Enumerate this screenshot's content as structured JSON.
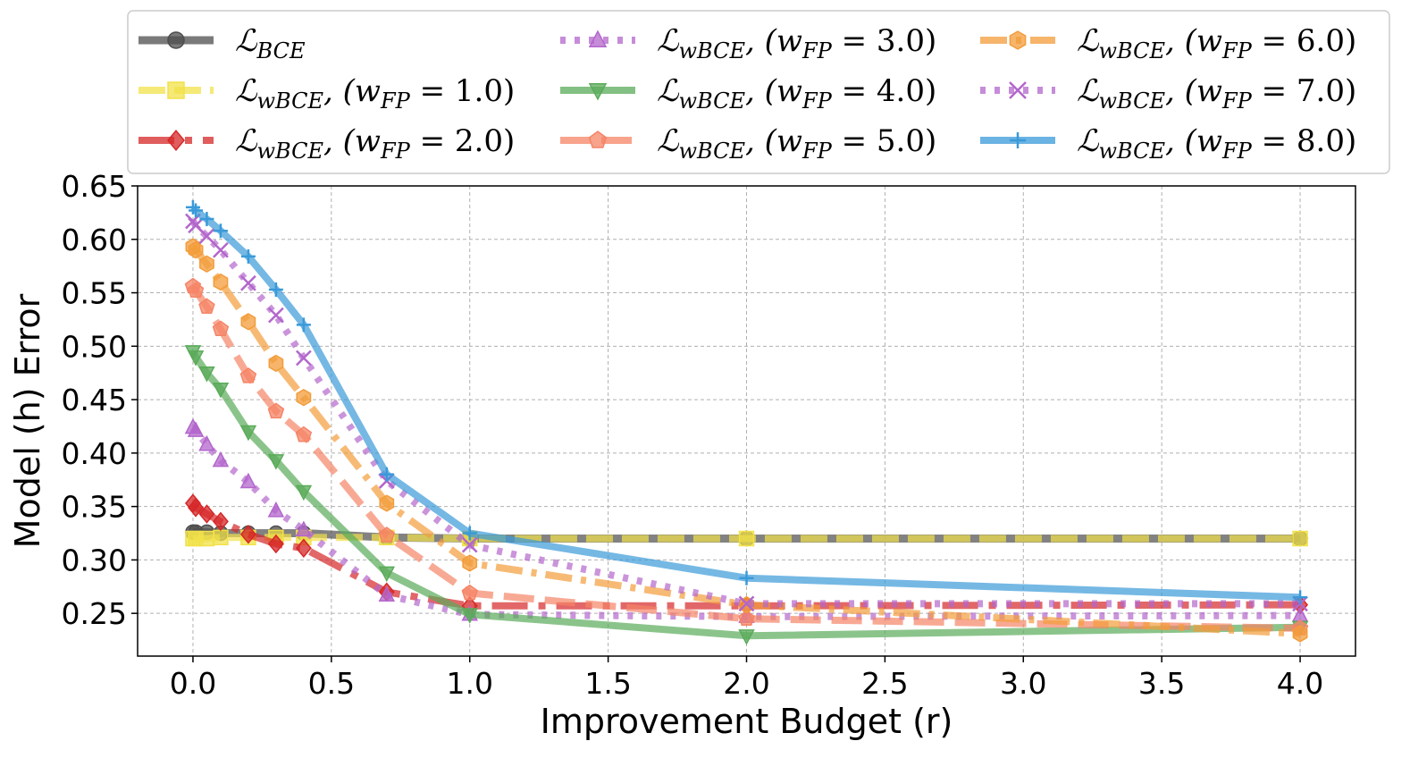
{
  "chart_data": {
    "type": "line",
    "title": "",
    "xlabel": "Improvement Budget (r)",
    "ylabel": "Model (h) Error",
    "xlim": [
      -0.2,
      4.2
    ],
    "ylim": [
      0.21,
      0.65
    ],
    "xticks": [
      0.0,
      0.5,
      1.0,
      1.5,
      2.0,
      2.5,
      3.0,
      3.5,
      4.0
    ],
    "xtick_labels": [
      "0.0",
      "0.5",
      "1.0",
      "1.5",
      "2.0",
      "2.5",
      "3.0",
      "3.5",
      "4.0"
    ],
    "yticks": [
      0.25,
      0.3,
      0.35,
      0.4,
      0.45,
      0.5,
      0.55,
      0.6,
      0.65
    ],
    "ytick_labels": [
      "0.25",
      "0.30",
      "0.35",
      "0.40",
      "0.45",
      "0.50",
      "0.55",
      "0.60",
      "0.65"
    ],
    "grid": true,
    "legend_position": "top, outside plot, 3 columns",
    "x": [
      0.0,
      0.01,
      0.05,
      0.1,
      0.2,
      0.3,
      0.4,
      0.7,
      1.0,
      2.0,
      4.0
    ],
    "series": [
      {
        "name": "L_BCE",
        "legend_main": "ℒ",
        "legend_sub": "BCE",
        "legend_suffix": "",
        "color": "#4d4d4d",
        "marker": "circle",
        "dash": "",
        "width": 9,
        "values": [
          0.326,
          0.326,
          0.326,
          0.325,
          0.325,
          0.325,
          0.325,
          0.321,
          0.32,
          0.32,
          0.32
        ]
      },
      {
        "name": "L_wBCE, (w_FP = 1.0)",
        "legend_main": "ℒ",
        "legend_sub": "wBCE",
        "legend_suffix": ", (w",
        "legend_sub2": "FP",
        "legend_value": " = 1.0)",
        "color": "#f2e14a",
        "marker": "square",
        "dash": "30 10",
        "width": 8,
        "values": [
          0.32,
          0.32,
          0.32,
          0.321,
          0.321,
          0.321,
          0.321,
          0.321,
          0.32,
          0.32,
          0.32
        ]
      },
      {
        "name": "L_wBCE, (w_FP = 2.0)",
        "legend_main": "ℒ",
        "legend_sub": "wBCE",
        "legend_suffix": ", (w",
        "legend_sub2": "FP",
        "legend_value": " = 2.0)",
        "color": "#d62728",
        "marker": "diamond",
        "dash": "40 12 8 12",
        "width": 8,
        "values": [
          0.353,
          0.349,
          0.343,
          0.336,
          0.324,
          0.315,
          0.311,
          0.27,
          0.257,
          0.257,
          0.258
        ]
      },
      {
        "name": "L_wBCE, (w_FP = 3.0)",
        "legend_main": "ℒ",
        "legend_sub": "wBCE",
        "legend_suffix": ", (w",
        "legend_sub2": "FP",
        "legend_value": " = 3.0)",
        "color": "#b366cc",
        "marker": "triangle-up",
        "dash": "6 10",
        "width": 8,
        "values": [
          0.424,
          0.421,
          0.408,
          0.393,
          0.373,
          0.346,
          0.328,
          0.267,
          0.249,
          0.247,
          0.248
        ]
      },
      {
        "name": "L_wBCE, (w_FP = 4.0)",
        "legend_main": "ℒ",
        "legend_sub": "wBCE",
        "legend_suffix": ", (w",
        "legend_sub2": "FP",
        "legend_value": " = 4.0)",
        "color": "#5aab5a",
        "marker": "triangle-down",
        "dash": "",
        "width": 8,
        "values": [
          0.495,
          0.49,
          0.475,
          0.46,
          0.42,
          0.393,
          0.364,
          0.288,
          0.249,
          0.229,
          0.237
        ]
      },
      {
        "name": "L_wBCE, (w_FP = 5.0)",
        "legend_main": "ℒ",
        "legend_sub": "wBCE",
        "legend_suffix": ", (w",
        "legend_sub2": "FP",
        "legend_value": " = 5.0)",
        "color": "#f58466",
        "marker": "pentagon",
        "dash": "34 12",
        "width": 8,
        "values": [
          0.556,
          0.552,
          0.537,
          0.516,
          0.472,
          0.439,
          0.417,
          0.323,
          0.269,
          0.245,
          0.236
        ]
      },
      {
        "name": "L_wBCE, (w_FP = 6.0)",
        "legend_main": "ℒ",
        "legend_sub": "wBCE",
        "legend_suffix": ", (w",
        "legend_sub2": "FP",
        "legend_value": " = 6.0)",
        "color": "#f39c3a",
        "marker": "hexagon",
        "dash": "30 10 6 10",
        "width": 8,
        "values": [
          0.593,
          0.59,
          0.577,
          0.56,
          0.523,
          0.484,
          0.452,
          0.353,
          0.297,
          0.258,
          0.231
        ]
      },
      {
        "name": "L_wBCE, (w_FP = 7.0)",
        "legend_main": "ℒ",
        "legend_sub": "wBCE",
        "legend_suffix": ", (w",
        "legend_sub2": "FP",
        "legend_value": " = 7.0)",
        "color": "#b366cc",
        "marker": "x",
        "dash": "6 10",
        "width": 8,
        "values": [
          0.617,
          0.613,
          0.603,
          0.59,
          0.559,
          0.529,
          0.489,
          0.374,
          0.314,
          0.259,
          0.259
        ]
      },
      {
        "name": "L_wBCE, (w_FP = 8.0)",
        "legend_main": "ℒ",
        "legend_sub": "wBCE",
        "legend_suffix": ", (w",
        "legend_sub2": "FP",
        "legend_value": " = 8.0)",
        "color": "#3a9ad9",
        "marker": "plus",
        "dash": "",
        "width": 8,
        "values": [
          0.63,
          0.627,
          0.619,
          0.608,
          0.584,
          0.553,
          0.52,
          0.38,
          0.325,
          0.283,
          0.265
        ]
      }
    ]
  }
}
